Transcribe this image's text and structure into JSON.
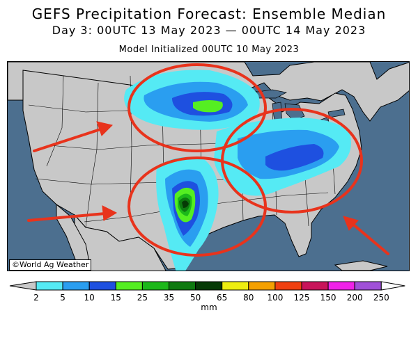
{
  "header": {
    "title": "GEFS Precipitation Forecast: Ensemble Median",
    "valid_period": "Day 3: 00UTC 13 May 2023 — 00UTC 14 May 2023",
    "init": "Model Initialized 00UTC 10 May 2023"
  },
  "map": {
    "credit": "©World Ag Weather",
    "colors": {
      "ocean": "#4c6f8f",
      "land": "#c8c8c8",
      "annotation": "#e8331c"
    },
    "annotations": {
      "circles": 3,
      "arrows": 3
    }
  },
  "legend": {
    "units": "mm",
    "labels": [
      "2",
      "5",
      "10",
      "15",
      "25",
      "35",
      "50",
      "65",
      "80",
      "100",
      "125",
      "150",
      "200",
      "250"
    ],
    "colors": [
      "#55eaf4",
      "#2a9ef0",
      "#1e50e0",
      "#55ee22",
      "#1cb81a",
      "#0e7a10",
      "#063a06",
      "#eeee10",
      "#f4a000",
      "#f04010",
      "#c8145a",
      "#f022e8",
      "#a050d8"
    ]
  }
}
